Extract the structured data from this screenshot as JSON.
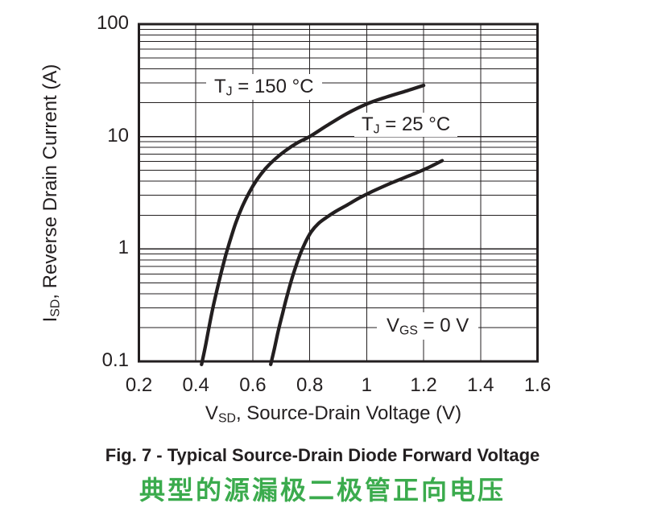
{
  "chart_data": {
    "type": "line",
    "title": "",
    "x_axis": {
      "scale": "linear",
      "min": 0.2,
      "max": 1.6,
      "ticks": [
        {
          "v": 0.2,
          "label": "0.2"
        },
        {
          "v": 0.4,
          "label": "0.4"
        },
        {
          "v": 0.6,
          "label": "0.6"
        },
        {
          "v": 0.8,
          "label": "0.8"
        },
        {
          "v": 1.0,
          "label": "1"
        },
        {
          "v": 1.2,
          "label": "1.2"
        },
        {
          "v": 1.4,
          "label": "1.4"
        },
        {
          "v": 1.6,
          "label": "1.6"
        }
      ],
      "label": {
        "pre": "V",
        "sub": "SD",
        "post": ", Source-Drain Voltage (V)"
      }
    },
    "y_axis": {
      "scale": "log",
      "min": 0.1,
      "max": 100,
      "ticks": [
        {
          "v": 100,
          "label": "100"
        },
        {
          "v": 10,
          "label": "10"
        },
        {
          "v": 1,
          "label": "1"
        },
        {
          "v": 0.1,
          "label": "0.1"
        }
      ],
      "minor_gridline_multipliers": [
        2,
        3,
        4,
        5,
        6,
        7,
        8,
        9
      ],
      "label": {
        "pre": "I",
        "sub": "SD",
        "post": ", Reverse Drain Current (A)"
      }
    },
    "grid": true,
    "legend_position": "inline-labels",
    "series": [
      {
        "name": "TJ = 150 °C",
        "label": {
          "pre": "T",
          "sub": "J",
          "post": " = 150 °C"
        },
        "points": [
          [
            0.42,
            0.094
          ],
          [
            0.432,
            0.13
          ],
          [
            0.446,
            0.2
          ],
          [
            0.46,
            0.3
          ],
          [
            0.475,
            0.44
          ],
          [
            0.49,
            0.63
          ],
          [
            0.505,
            0.88
          ],
          [
            0.52,
            1.18
          ],
          [
            0.54,
            1.7
          ],
          [
            0.562,
            2.35
          ],
          [
            0.588,
            3.2
          ],
          [
            0.615,
            4.15
          ],
          [
            0.645,
            5.2
          ],
          [
            0.678,
            6.3
          ],
          [
            0.715,
            7.5
          ],
          [
            0.757,
            8.8
          ],
          [
            0.8,
            10.0
          ],
          [
            0.86,
            12.5
          ],
          [
            0.93,
            16.0
          ],
          [
            1.0,
            19.5
          ],
          [
            1.07,
            22.5
          ],
          [
            1.14,
            25.5
          ],
          [
            1.2,
            28.5
          ]
        ]
      },
      {
        "name": "TJ = 25 °C",
        "label": {
          "pre": "T",
          "sub": "J",
          "post": " = 25 °C"
        },
        "points": [
          [
            0.663,
            0.094
          ],
          [
            0.676,
            0.13
          ],
          [
            0.69,
            0.19
          ],
          [
            0.705,
            0.27
          ],
          [
            0.72,
            0.38
          ],
          [
            0.736,
            0.53
          ],
          [
            0.752,
            0.71
          ],
          [
            0.768,
            0.92
          ],
          [
            0.785,
            1.15
          ],
          [
            0.805,
            1.42
          ],
          [
            0.83,
            1.68
          ],
          [
            0.858,
            1.9
          ],
          [
            0.89,
            2.15
          ],
          [
            0.93,
            2.45
          ],
          [
            0.975,
            2.85
          ],
          [
            1.02,
            3.25
          ],
          [
            1.09,
            3.9
          ],
          [
            1.16,
            4.6
          ],
          [
            1.21,
            5.2
          ],
          [
            1.265,
            6.1
          ]
        ]
      }
    ],
    "annotation": {
      "pre": "V",
      "sub": "GS",
      "post": " = 0 V"
    }
  },
  "captions": {
    "figure": "Fig. 7 - Typical Source-Drain Diode Forward Voltage",
    "figure_cn": "典型的源漏极二极管正向电压"
  },
  "colors": {
    "ink": "#231f20",
    "grid": "#231f20",
    "curve": "#231f20",
    "caption_green": "#3bab4d",
    "background": "#ffffff"
  }
}
